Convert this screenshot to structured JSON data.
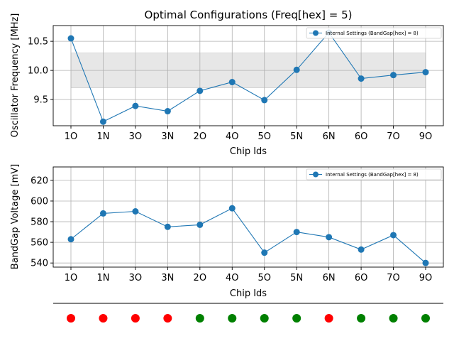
{
  "chart_data": [
    {
      "type": "line",
      "title": "Optimal Configurations  (Freq[hex] = 5)",
      "xlabel": "Chip Ids",
      "ylabel": "Oscillator Frequency [MHz]",
      "categories": [
        "1O",
        "1N",
        "3O",
        "3N",
        "2O",
        "4O",
        "5O",
        "5N",
        "6N",
        "6O",
        "7O",
        "9O"
      ],
      "series": [
        {
          "name": "Internal Settings (BandGap[hex] = 8)",
          "values": [
            10.55,
            9.12,
            9.39,
            9.3,
            9.65,
            9.8,
            9.49,
            10.01,
            10.65,
            9.86,
            9.92,
            9.97
          ]
        }
      ],
      "ylim": [
        9.05,
        10.77
      ],
      "yticks": [
        9.5,
        10.0,
        10.5
      ],
      "ytick_labels": [
        "9.5",
        "10.0",
        "10.5"
      ],
      "band": {
        "from": 9.7,
        "to": 10.3
      },
      "grid": true,
      "legend": "top-right",
      "color": "#1f77b4"
    },
    {
      "type": "line",
      "title": "",
      "xlabel": "Chip Ids",
      "ylabel": "BandGap Voltage [mV]",
      "categories": [
        "1O",
        "1N",
        "3O",
        "3N",
        "2O",
        "4O",
        "5O",
        "5N",
        "6N",
        "6O",
        "7O",
        "9O"
      ],
      "series": [
        {
          "name": "Internal Settings (BandGap[hex] = 8)",
          "values": [
            563,
            588,
            590,
            575,
            577,
            593,
            550,
            570,
            565,
            553,
            567,
            540
          ]
        }
      ],
      "ylim": [
        536,
        633
      ],
      "yticks": [
        540,
        560,
        580,
        600,
        620
      ],
      "ytick_labels": [
        "540",
        "560",
        "580",
        "600",
        "620"
      ],
      "grid": true,
      "legend": "top-right",
      "color": "#1f77b4"
    },
    {
      "type": "scatter",
      "title": "",
      "categories": [
        "1O",
        "1N",
        "3O",
        "3N",
        "2O",
        "4O",
        "5O",
        "5N",
        "6N",
        "6O",
        "7O",
        "9O"
      ],
      "status_colors": [
        "#ff0000",
        "#ff0000",
        "#ff0000",
        "#ff0000",
        "#008000",
        "#008000",
        "#008000",
        "#008000",
        "#ff0000",
        "#008000",
        "#008000",
        "#008000"
      ]
    }
  ]
}
